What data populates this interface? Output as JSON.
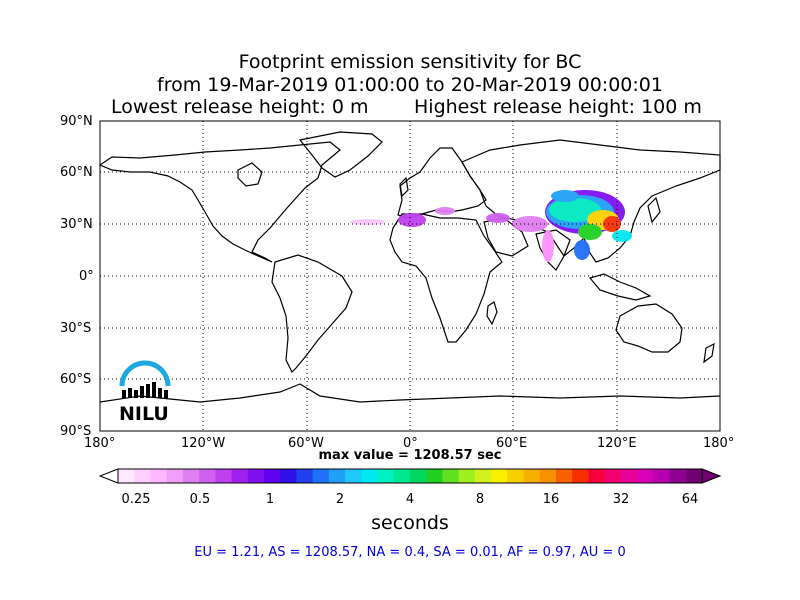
{
  "title": {
    "line1": "Footprint emission sensitivity for BC",
    "line2": "from 19-Mar-2019 01:00:00 to 20-Mar-2019 00:00:01",
    "release_low": "Lowest release height: 0 m",
    "release_high": "Highest release height: 100 m"
  },
  "map": {
    "lat_labels": [
      "90°N",
      "60°N",
      "30°N",
      "0°",
      "30°S",
      "60°S",
      "90°S"
    ],
    "lon_labels": [
      "180°",
      "120°W",
      "60°W",
      "0°",
      "60°E",
      "120°E",
      "180°"
    ],
    "grid": "dotted",
    "logo_text": "NILU",
    "logo_color": "#1ea8e0"
  },
  "max_value": "max value = 1208.57 sec",
  "colorbar": {
    "ticks": [
      "0.25",
      "0.5",
      "1",
      "2",
      "4",
      "8",
      "16",
      "32",
      "64"
    ],
    "units": "seconds",
    "colors": [
      "#ffe8ff",
      "#ffd0ff",
      "#ffb8ff",
      "#f0a0f8",
      "#e080f0",
      "#d060f0",
      "#c040f0",
      "#a020f0",
      "#8010f0",
      "#6000f0",
      "#3010e8",
      "#2040f0",
      "#2070f8",
      "#20a0f8",
      "#20c8f8",
      "#00e8f0",
      "#00f0c0",
      "#00e890",
      "#00d860",
      "#20d020",
      "#60e020",
      "#a0f020",
      "#d0f020",
      "#f8f000",
      "#f8d000",
      "#f8b000",
      "#f89000",
      "#f86000",
      "#f83000",
      "#f80040",
      "#f00070",
      "#e80098",
      "#d800b8",
      "#b800b0",
      "#900090",
      "#700070"
    ]
  },
  "regions": "EU = 1.21,  AS = 1208.57,  NA = 0.4,  SA = 0.01,  AF = 0.97,  AU = 0"
}
